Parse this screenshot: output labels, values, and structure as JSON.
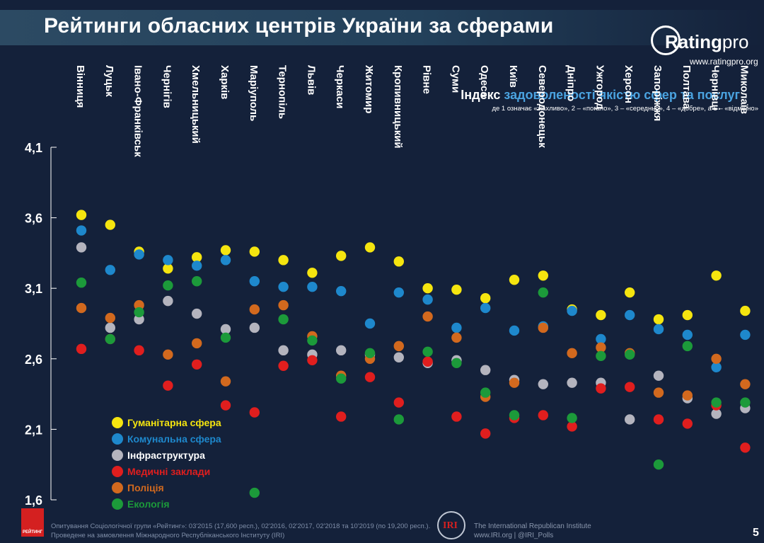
{
  "header": {
    "title": "Рейтинги обласних центрів України за сферами",
    "logo_text_bold": "Rating",
    "logo_text": "pro",
    "logo_url": "www.ratingpro.org"
  },
  "index": {
    "title_part1": "Індекс",
    "title_part2": "задоволеності якістю сфер та послуг",
    "subtitle": "де 1 означає «жахливо», 2 – «погано», 3 – «середньо», 4 – «добре», а 5 – «відмінно»"
  },
  "footer": {
    "logo_label": "РЕЙТИНГ",
    "line1": "Опитування Соціологічної групи «Рейтинг»: 03'2015 (17,600 респ.), 02'2016, 02'2017, 02'2018 та 10'2019 (по 19,200 респ.).",
    "line2": "Проведене на замовлення Міжнародного Республіканського Інституту (IRI)",
    "iri_mark": "IRI",
    "iri_line1": "The International Republican Institute",
    "iri_line2": "www.IRI.org | @IRI_Polls",
    "page_number": "5"
  },
  "colors": {
    "humanitarian": "#f5e50f",
    "communal": "#1e88cc",
    "infrastructure": "#b4b4be",
    "medical": "#e01e1e",
    "police": "#d2691e",
    "ecology": "#1c9a3a"
  },
  "chart_data": {
    "type": "scatter",
    "ylim": [
      1.6,
      4.1
    ],
    "yticks": [
      "4,1",
      "3,6",
      "3,1",
      "2,6",
      "2,1",
      "1,6"
    ],
    "grid": false,
    "legend_position": "bottom-left",
    "categories": [
      "Вінниця",
      "Луцьк",
      "Івано-Франківськ",
      "Чернігів",
      "Хмельницький",
      "Харків",
      "Маріуполь",
      "Тернопіль",
      "Львів",
      "Черкаси",
      "Житомир",
      "Кропивницький",
      "Рівне",
      "Суми",
      "Одеса",
      "Київ",
      "Северодонецьк",
      "Дніпро",
      "Ужгород",
      "Херсон",
      "Запоріжжя",
      "Полтава",
      "Чернівці",
      "Миколаїв"
    ],
    "series": [
      {
        "name": "Гуманітарна сфера",
        "color_key": "humanitarian",
        "values": [
          3.62,
          3.55,
          3.36,
          3.24,
          3.32,
          3.37,
          3.36,
          3.3,
          3.21,
          3.33,
          3.39,
          3.29,
          3.1,
          3.09,
          3.03,
          3.16,
          3.19,
          2.95,
          2.91,
          3.07,
          2.88,
          2.91,
          3.19,
          2.94
        ]
      },
      {
        "name": "Комунальна сфера",
        "color_key": "communal",
        "values": [
          3.51,
          3.23,
          3.34,
          3.3,
          3.26,
          3.3,
          3.15,
          3.11,
          3.11,
          3.08,
          2.85,
          3.07,
          3.02,
          2.82,
          2.96,
          2.8,
          2.83,
          2.94,
          2.74,
          2.91,
          2.81,
          2.77,
          2.54,
          2.77
        ]
      },
      {
        "name": "Інфраструктура",
        "color_key": "infrastructure",
        "values": [
          3.39,
          2.82,
          2.88,
          3.01,
          2.92,
          2.81,
          2.82,
          2.66,
          2.63,
          2.66,
          2.63,
          2.61,
          2.57,
          2.59,
          2.52,
          2.45,
          2.42,
          2.43,
          2.43,
          2.17,
          2.48,
          2.32,
          2.21,
          2.25
        ]
      },
      {
        "name": "Медичні заклади",
        "color_key": "medical",
        "values": [
          2.67,
          2.74,
          2.66,
          2.41,
          2.56,
          2.27,
          2.22,
          2.55,
          2.59,
          2.19,
          2.47,
          2.29,
          2.58,
          2.19,
          2.07,
          2.18,
          2.2,
          2.12,
          2.39,
          2.4,
          2.17,
          2.14,
          2.27,
          1.97
        ]
      },
      {
        "name": "Поліція",
        "color_key": "police",
        "values": [
          2.96,
          2.89,
          2.98,
          2.63,
          2.71,
          2.44,
          2.95,
          2.98,
          2.76,
          2.48,
          2.6,
          2.69,
          2.9,
          2.75,
          2.33,
          2.43,
          2.82,
          2.64,
          2.68,
          2.64,
          2.36,
          2.34,
          2.6,
          2.42
        ]
      },
      {
        "name": "Екологія",
        "color_key": "ecology",
        "values": [
          3.14,
          2.74,
          2.93,
          3.12,
          3.15,
          2.75,
          1.65,
          2.88,
          2.73,
          2.46,
          2.64,
          2.17,
          2.65,
          2.57,
          2.36,
          2.2,
          3.07,
          2.18,
          2.62,
          2.63,
          1.85,
          2.69,
          2.29,
          2.29
        ]
      }
    ]
  }
}
